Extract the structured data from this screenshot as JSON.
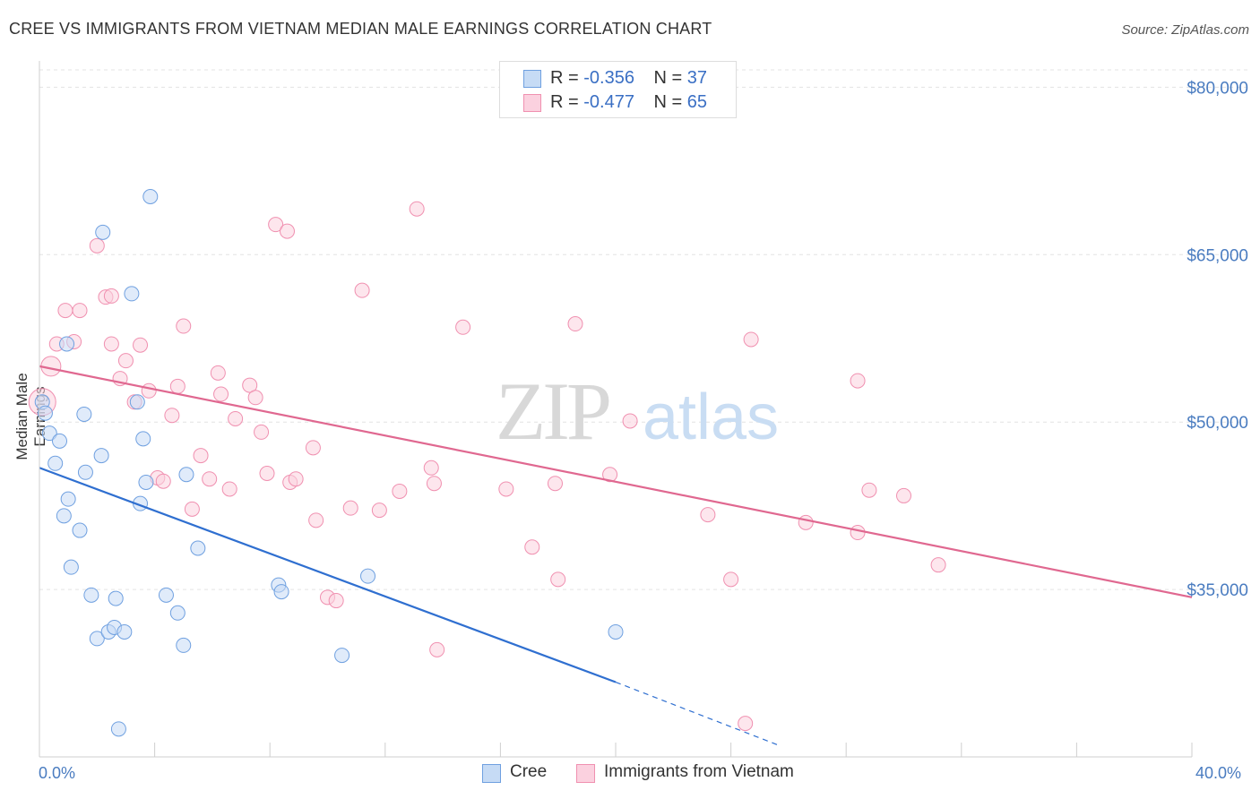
{
  "title": "CREE VS IMMIGRANTS FROM VIETNAM MEDIAN MALE EARNINGS CORRELATION CHART",
  "source": "Source: ZipAtlas.com",
  "watermark": {
    "zip": "ZIP",
    "atlas": "atlas"
  },
  "stats": {
    "row1": {
      "r_label": "R = ",
      "r_value": "-0.356",
      "n_label": "N = ",
      "n_value": "37"
    },
    "row2": {
      "r_label": "R = ",
      "r_value": "-0.477",
      "n_label": "N = ",
      "n_value": "65"
    }
  },
  "legend": {
    "series1": "Cree",
    "series2": "Immigrants from Vietnam"
  },
  "colors": {
    "cree": "#6fa0e0",
    "cree_line": "#2f6fd0",
    "vietnam": "#f090b0",
    "vietnam_line": "#e06890",
    "axis_text": "#4a7cc0"
  },
  "chart_data": {
    "type": "scatter",
    "title": "CREE VS IMMIGRANTS FROM VIETNAM MEDIAN MALE EARNINGS CORRELATION CHART",
    "xlabel": "",
    "ylabel": "Median Male Earnings",
    "xlim": [
      0,
      40
    ],
    "ylim": [
      20000,
      83000
    ],
    "x_tick_labels": [
      "0.0%",
      "40.0%"
    ],
    "y_ticks": [
      35000,
      50000,
      65000,
      80000
    ],
    "y_tick_labels": [
      "$35,000",
      "$50,000",
      "$65,000",
      "$80,000"
    ],
    "grid": true,
    "legend_position": "bottom-center",
    "series": [
      {
        "name": "Cree",
        "color": "#6fa0e0",
        "trend": {
          "x": [
            0,
            20
          ],
          "y": [
            45900,
            26700
          ],
          "dashed_extension_to": [
            25.7,
            21000
          ]
        },
        "points": [
          [
            0.1,
            51.8
          ],
          [
            0.2,
            50.8
          ],
          [
            0.35,
            49.0
          ],
          [
            0.55,
            46.3
          ],
          [
            0.7,
            48.3
          ],
          [
            0.85,
            41.6
          ],
          [
            1.0,
            43.1
          ],
          [
            1.1,
            37.0
          ],
          [
            1.4,
            40.3
          ],
          [
            1.6,
            45.5
          ],
          [
            1.8,
            34.5
          ],
          [
            2.0,
            30.6
          ],
          [
            2.15,
            47.0
          ],
          [
            2.2,
            67.0
          ],
          [
            2.4,
            31.2
          ],
          [
            2.6,
            31.6
          ],
          [
            2.65,
            34.2
          ],
          [
            2.75,
            22.5
          ],
          [
            2.95,
            31.2
          ],
          [
            3.2,
            61.5
          ],
          [
            3.4,
            51.8
          ],
          [
            3.5,
            42.7
          ],
          [
            3.6,
            48.5
          ],
          [
            3.7,
            44.6
          ],
          [
            3.85,
            70.2
          ],
          [
            4.4,
            34.5
          ],
          [
            4.8,
            32.9
          ],
          [
            5.0,
            30.0
          ],
          [
            5.1,
            45.3
          ],
          [
            5.5,
            38.7
          ],
          [
            8.3,
            35.4
          ],
          [
            8.4,
            34.8
          ],
          [
            10.5,
            29.1
          ],
          [
            11.4,
            36.2
          ],
          [
            20.0,
            31.2
          ],
          [
            1.55,
            50.7
          ],
          [
            0.95,
            57.0
          ]
        ]
      },
      {
        "name": "Immigrants from Vietnam",
        "color": "#f090b0",
        "trend": {
          "x": [
            0,
            40
          ],
          "y": [
            55000,
            34300
          ]
        },
        "points": [
          [
            0.1,
            51.8
          ],
          [
            0.4,
            55.0
          ],
          [
            0.6,
            57.0
          ],
          [
            0.9,
            60.0
          ],
          [
            1.2,
            57.2
          ],
          [
            1.4,
            60.0
          ],
          [
            2.0,
            65.8
          ],
          [
            2.3,
            61.2
          ],
          [
            2.5,
            61.3
          ],
          [
            2.5,
            57.0
          ],
          [
            2.8,
            53.9
          ],
          [
            3.0,
            55.5
          ],
          [
            3.3,
            51.8
          ],
          [
            3.5,
            56.9
          ],
          [
            3.8,
            52.8
          ],
          [
            4.1,
            45.0
          ],
          [
            4.3,
            44.7
          ],
          [
            4.6,
            50.6
          ],
          [
            4.8,
            53.2
          ],
          [
            5.0,
            58.6
          ],
          [
            5.3,
            42.2
          ],
          [
            5.6,
            47.0
          ],
          [
            5.9,
            44.9
          ],
          [
            6.2,
            54.4
          ],
          [
            6.3,
            52.5
          ],
          [
            6.6,
            44.0
          ],
          [
            6.8,
            50.3
          ],
          [
            7.3,
            53.3
          ],
          [
            7.5,
            52.2
          ],
          [
            7.7,
            49.1
          ],
          [
            7.9,
            45.4
          ],
          [
            8.2,
            67.7
          ],
          [
            8.6,
            67.1
          ],
          [
            8.7,
            44.6
          ],
          [
            8.9,
            44.9
          ],
          [
            9.5,
            47.7
          ],
          [
            9.6,
            41.2
          ],
          [
            10.0,
            34.3
          ],
          [
            10.3,
            34.0
          ],
          [
            10.8,
            42.3
          ],
          [
            11.2,
            61.8
          ],
          [
            11.8,
            42.1
          ],
          [
            12.5,
            43.8
          ],
          [
            13.1,
            69.1
          ],
          [
            13.6,
            45.9
          ],
          [
            13.7,
            44.5
          ],
          [
            13.8,
            29.6
          ],
          [
            14.7,
            58.5
          ],
          [
            16.2,
            44.0
          ],
          [
            17.1,
            38.8
          ],
          [
            17.9,
            44.5
          ],
          [
            18.0,
            35.9
          ],
          [
            18.6,
            58.8
          ],
          [
            19.8,
            45.3
          ],
          [
            20.5,
            50.1
          ],
          [
            23.2,
            41.7
          ],
          [
            24.0,
            35.9
          ],
          [
            24.5,
            23.0
          ],
          [
            24.7,
            57.4
          ],
          [
            26.6,
            41.0
          ],
          [
            28.4,
            40.1
          ],
          [
            28.4,
            53.7
          ],
          [
            28.8,
            43.9
          ],
          [
            30.0,
            43.4
          ],
          [
            31.2,
            37.2
          ]
        ]
      }
    ]
  }
}
